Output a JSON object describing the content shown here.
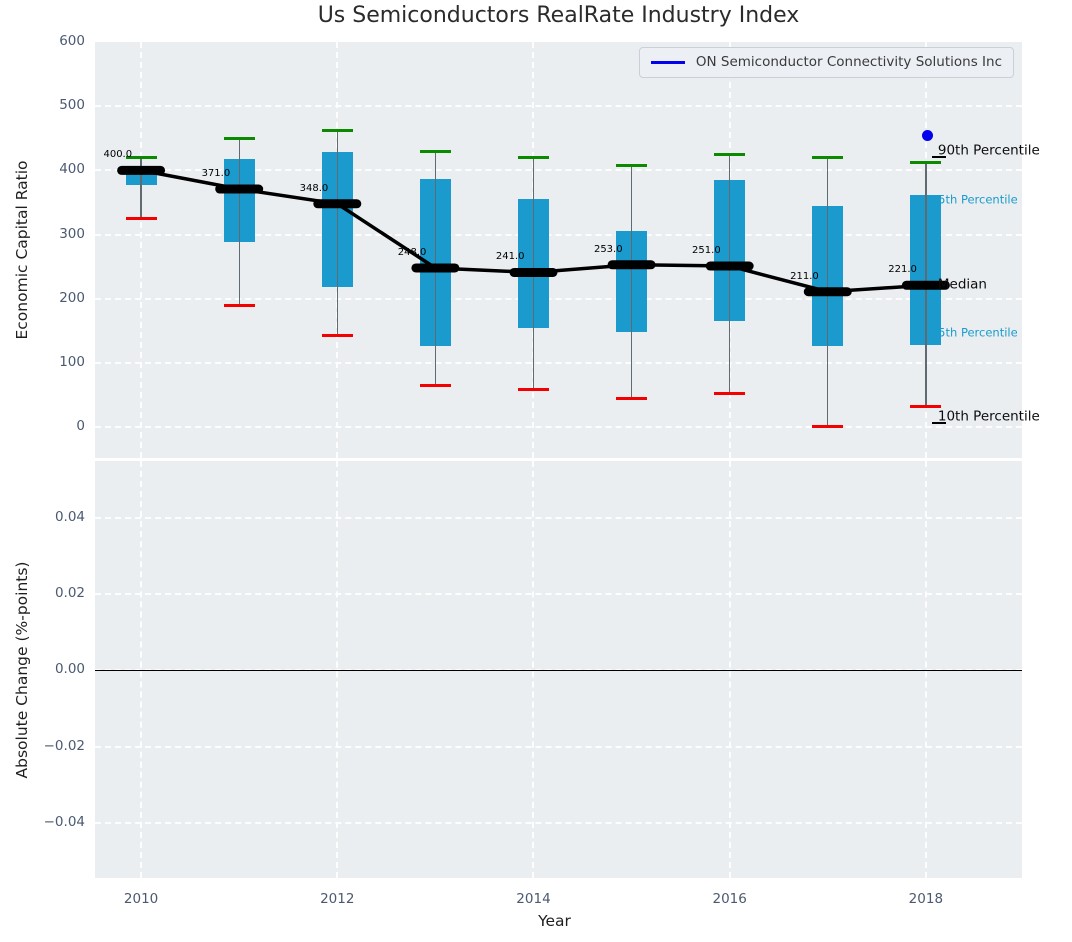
{
  "title": "Us Semiconductors RealRate Industry Index",
  "legend": {
    "label": "ON Semiconductor Connectivity Solutions Inc"
  },
  "x_axis": {
    "label": "Year",
    "tick_values": [
      2010,
      2012,
      2014,
      2016,
      2018
    ],
    "tick_labels": [
      "2010",
      "2012",
      "2014",
      "2016",
      "2018"
    ]
  },
  "top_axes": {
    "ylabel": "Economic Capital Ratio",
    "tick_values": [
      600,
      500,
      400,
      300,
      200,
      100,
      0
    ],
    "tick_labels": [
      "600",
      "500",
      "400",
      "300",
      "200",
      "100",
      "0"
    ]
  },
  "bottom_axes": {
    "ylabel": "Absolute Change (%-points)",
    "tick_values": [
      0.04,
      0.02,
      0,
      -0.02,
      -0.04
    ],
    "tick_labels": [
      "0.04",
      "0.02",
      "0.00",
      "−0.02",
      "−0.04"
    ],
    "zero_line_value": 0
  },
  "colors": {
    "axes_bg": "#ebeef1",
    "bar": "#1b9bcd",
    "accent_text": "#1b9bcd",
    "green_cap": "#0b8a00",
    "red_cap": "#f40000",
    "median_line": "#000000",
    "series_blue": "#0202ee",
    "whisker": "#5f6b70"
  },
  "chart_data": {
    "type": "boxplot-with-median-line",
    "title": "Us Semiconductors RealRate Industry Index",
    "xlabel": "Year",
    "ylabel_top": "Economic Capital Ratio",
    "ylabel_bottom": "Absolute Change (%-points)",
    "x": [
      2010,
      2011,
      2012,
      2013,
      2014,
      2015,
      2016,
      2017,
      2018
    ],
    "series": {
      "median": [
        400,
        371,
        348,
        248,
        241,
        253,
        251,
        211,
        221
      ],
      "p75": [
        405,
        418,
        428,
        387,
        355,
        305,
        385,
        345,
        362
      ],
      "p25": [
        378,
        289,
        218,
        127,
        155,
        148,
        165,
        127,
        128
      ],
      "p90": [
        420,
        450,
        462,
        430,
        420,
        408,
        424,
        420,
        412
      ],
      "p10": [
        325,
        190,
        143,
        65,
        59,
        44,
        52,
        1,
        32
      ]
    },
    "median_point_labels": [
      "400.0",
      "371.0",
      "348.0",
      "248.0",
      "241.0",
      "253.0",
      "251.0",
      "211.0",
      "221.0"
    ],
    "company_point": {
      "x": 2018,
      "y": 455
    },
    "side_labels": [
      {
        "text": "90th Percentile",
        "anchor": "p90",
        "style": "dark",
        "leader": true
      },
      {
        "text": "75th Percentile",
        "anchor": "p75",
        "style": "accent",
        "leader": false
      },
      {
        "text": "Median",
        "anchor": "median",
        "style": "dark",
        "leader": false
      },
      {
        "text": "25th Percentile",
        "anchor": "p25",
        "style": "accent",
        "leader": false
      },
      {
        "text": "10th Percentile",
        "anchor": "p10",
        "style": "dark",
        "leader": true
      }
    ],
    "xlim": [
      2009.53,
      2018.98
    ],
    "ylim_top": [
      -48,
      600
    ],
    "ylim_bottom": [
      -0.0543,
      0.0548
    ],
    "grid": "white-dashed",
    "legend_position": "upper right"
  }
}
